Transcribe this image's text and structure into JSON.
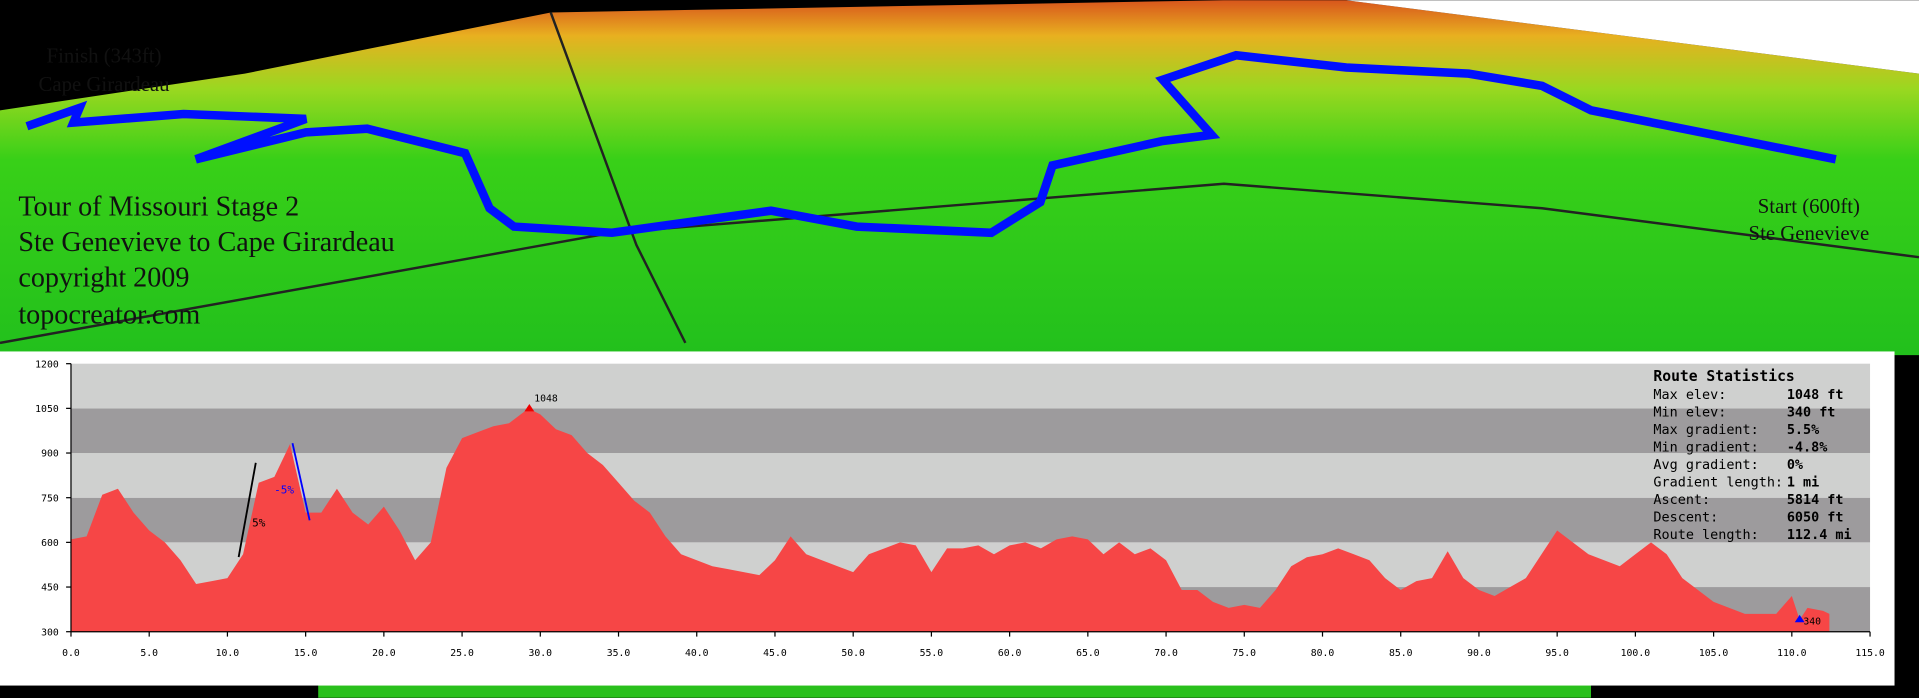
{
  "map": {
    "finish": "Finish (343ft)",
    "finish_place": "Cape Girardeau",
    "start": "Start (600ft)",
    "start_place": "Ste Genevieve",
    "title_lines": [
      "Tour of Missouri Stage 2",
      "Ste Genevieve to Cape Girardeau",
      "copyright 2009",
      "topocreator.com"
    ]
  },
  "chart_data": {
    "type": "area",
    "color": "#f64646",
    "x": [
      0,
      1,
      2,
      3,
      4,
      5,
      6,
      7,
      8,
      9,
      10,
      11,
      12,
      13,
      14,
      15,
      16,
      17,
      18,
      19,
      20,
      21,
      22,
      23,
      24,
      25,
      26,
      27,
      28,
      29,
      29.3,
      30,
      31,
      32,
      33,
      34,
      35,
      36,
      37,
      38,
      39,
      40,
      41,
      42,
      43,
      44,
      45,
      46,
      47,
      48,
      49,
      50,
      51,
      52,
      53,
      54,
      55,
      56,
      57,
      58,
      59,
      60,
      61,
      62,
      63,
      64,
      65,
      66,
      67,
      68,
      69,
      70,
      71,
      72,
      73,
      74,
      75,
      76,
      77,
      78,
      79,
      80,
      81,
      82,
      83,
      84,
      85,
      86,
      87,
      88,
      89,
      90,
      91,
      92,
      93,
      94,
      95,
      96,
      97,
      98,
      99,
      100,
      101,
      102,
      103,
      104,
      105,
      106,
      107,
      108,
      109,
      110,
      110.5,
      111,
      112,
      112.4
    ],
    "values": [
      610,
      620,
      760,
      780,
      700,
      640,
      600,
      540,
      460,
      470,
      480,
      560,
      800,
      820,
      930,
      700,
      700,
      780,
      700,
      660,
      720,
      640,
      540,
      600,
      850,
      950,
      970,
      990,
      1000,
      1040,
      1048,
      1030,
      980,
      960,
      900,
      860,
      800,
      740,
      700,
      620,
      560,
      540,
      520,
      510,
      500,
      490,
      540,
      620,
      560,
      540,
      520,
      500,
      560,
      580,
      600,
      590,
      500,
      580,
      580,
      590,
      560,
      590,
      600,
      580,
      610,
      620,
      610,
      560,
      600,
      560,
      580,
      540,
      440,
      440,
      400,
      380,
      390,
      380,
      440,
      520,
      550,
      560,
      580,
      560,
      540,
      480,
      440,
      470,
      480,
      570,
      480,
      440,
      420,
      450,
      480,
      560,
      640,
      600,
      560,
      540,
      520,
      560,
      600,
      560,
      480,
      440,
      400,
      380,
      360,
      360,
      360,
      420,
      340,
      380,
      370,
      360
    ],
    "xlim": [
      0,
      115
    ],
    "ylim": [
      300,
      1200
    ],
    "xticks": [
      {
        "value": 0,
        "label": "0.0"
      },
      {
        "value": 5,
        "label": "5.0"
      },
      {
        "value": 10,
        "label": "10.0"
      },
      {
        "value": 15,
        "label": "15.0"
      },
      {
        "value": 20,
        "label": "20.0"
      },
      {
        "value": 25,
        "label": "25.0"
      },
      {
        "value": 30,
        "label": "30.0"
      },
      {
        "value": 35,
        "label": "35.0"
      },
      {
        "value": 40,
        "label": "40.0"
      },
      {
        "value": 45,
        "label": "45.0"
      },
      {
        "value": 50,
        "label": "50.0"
      },
      {
        "value": 55,
        "label": "55.0"
      },
      {
        "value": 60,
        "label": "60.0"
      },
      {
        "value": 65,
        "label": "65.0"
      },
      {
        "value": 70,
        "label": "70.0"
      },
      {
        "value": 75,
        "label": "75.0"
      },
      {
        "value": 80,
        "label": "80.0"
      },
      {
        "value": 85,
        "label": "85.0"
      },
      {
        "value": 90,
        "label": "90.0"
      },
      {
        "value": 95,
        "label": "95.0"
      },
      {
        "value": 100,
        "label": "100.0"
      },
      {
        "value": 105,
        "label": "105.0"
      },
      {
        "value": 110,
        "label": "110.0"
      },
      {
        "value": 115,
        "label": "115.0"
      }
    ],
    "yticks": [
      300,
      450,
      600,
      750,
      900,
      1050,
      1200
    ],
    "bands": true,
    "annotations": [
      "5%",
      "-5%"
    ],
    "stats": {
      "title": "Route Statistics",
      "rows": [
        [
          "Max elev:",
          "1048 ft"
        ],
        [
          "Min elev:",
          "340 ft"
        ],
        [
          "Max gradient:",
          "5.5%"
        ],
        [
          "Min gradient:",
          "-4.8%"
        ],
        [
          "Avg gradient:",
          "0%"
        ],
        [
          "Gradient length:",
          "1 mi"
        ],
        [
          "Ascent:",
          "5814 ft"
        ],
        [
          "Descent:",
          "6050 ft"
        ],
        [
          "Route length:",
          "112.4 mi"
        ]
      ]
    }
  }
}
